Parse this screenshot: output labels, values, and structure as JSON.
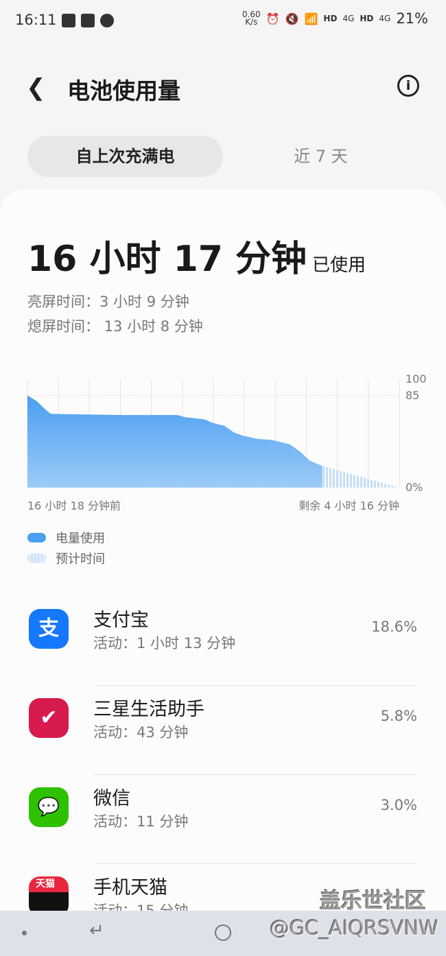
{
  "status_bar": {
    "time": "16:11",
    "net_speed": "0.60",
    "net_unit": "K/s",
    "hd1": "HD",
    "net1": "4G",
    "hd2": "HD",
    "net2": "4G",
    "battery": "21%"
  },
  "header": {
    "title": "电池使用量",
    "back_icon": "chevron-left-icon",
    "info_icon": "info-icon"
  },
  "tabs": [
    {
      "label": "自上次充满电",
      "active": true
    },
    {
      "label": "近 7 天",
      "active": false
    }
  ],
  "summary": {
    "used_time": "16 小时 17 分钟",
    "used_suffix": "已使用",
    "screen_on": "亮屏时间：3 小时 9 分钟",
    "screen_off": "熄屏时间： 13 小时 8 分钟"
  },
  "chart_data": {
    "type": "area",
    "y_ticks": [
      "100",
      "85",
      "0%"
    ],
    "ylim": [
      0,
      100
    ],
    "x_start_label": "16 小时 18 分钟前",
    "x_end_label": "剩余 4 小时 16 分钟",
    "grid": true,
    "series": [
      {
        "name": "电量使用",
        "color": "#4a9ff0",
        "x_hours": [
          0,
          0.5,
          1.0,
          1.3,
          5.0,
          8.3,
          8.7,
          9.8,
          10.2,
          10.9,
          11.4,
          11.9,
          12.7,
          13.5,
          14.5,
          15.1,
          15.6,
          16.3
        ],
        "values": [
          85,
          80,
          72,
          68,
          67,
          67,
          65,
          63,
          60,
          57,
          51,
          48,
          45,
          44,
          40,
          33,
          25,
          20
        ]
      },
      {
        "name": "预计时间",
        "color": "#c5def8",
        "x_hours": [
          16.3,
          20.57
        ],
        "values": [
          20,
          0
        ]
      }
    ]
  },
  "legend": [
    {
      "label": "电量使用",
      "color": "#4a9ff0"
    },
    {
      "label": "预计时间",
      "color": "#cfe3f8"
    }
  ],
  "apps": [
    {
      "name": "支付宝",
      "activity": "活动：1 小时 13 分钟",
      "percent": "18.6%",
      "icon_color": "#1677ff",
      "icon_glyph": "支"
    },
    {
      "name": "三星生活助手",
      "activity": "活动：43 分钟",
      "percent": "5.8%",
      "icon_color": "#d81b4f",
      "icon_glyph": "✔"
    },
    {
      "name": "微信",
      "activity": "活动：11 分钟",
      "percent": "3.0%",
      "icon_color": "#2dc100",
      "icon_glyph": "💬"
    },
    {
      "name": "手机天猫",
      "activity": "活动：15 分钟",
      "percent": "",
      "icon_color": "#e8263c",
      "icon_glyph": "天猫"
    }
  ],
  "watermark": {
    "line1": "盖乐世社区",
    "line2": "@GC_AIQRSVNW"
  }
}
